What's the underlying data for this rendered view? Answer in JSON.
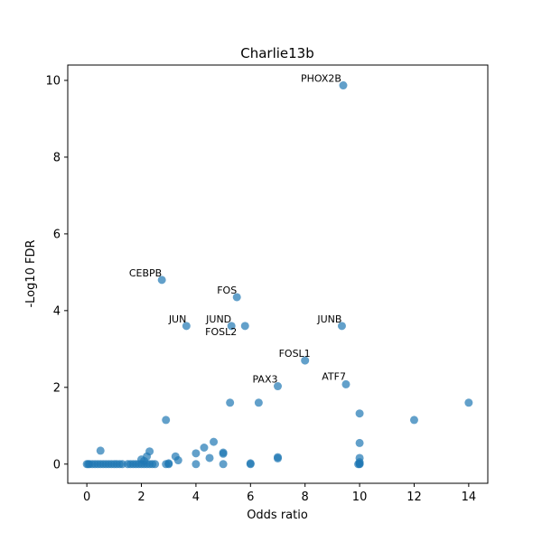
{
  "chart_data": {
    "type": "scatter",
    "title": "Charlie13b",
    "xlabel": "Odds ratio",
    "ylabel": "-Log10 FDR",
    "xlim": [
      -0.7,
      14.7
    ],
    "ylim": [
      -0.5,
      10.4
    ],
    "xticks": [
      0,
      2,
      4,
      6,
      8,
      10,
      12,
      14
    ],
    "yticks": [
      0,
      2,
      4,
      6,
      8,
      10
    ],
    "xtick_labels": [
      "0",
      "2",
      "4",
      "6",
      "8",
      "10",
      "12",
      "14"
    ],
    "ytick_labels": [
      "0",
      "2",
      "4",
      "6",
      "8",
      "10"
    ],
    "grid": false,
    "marker_color": "#1f77b4",
    "marker_alpha": 0.7,
    "labeled_points": [
      {
        "label": "PHOX2B",
        "x": 9.4,
        "y": 9.87
      },
      {
        "label": "CEBPB",
        "x": 2.75,
        "y": 4.8
      },
      {
        "label": "FOS",
        "x": 5.5,
        "y": 4.35
      },
      {
        "label": "JUN",
        "x": 3.65,
        "y": 3.6
      },
      {
        "label": "JUND",
        "x": 5.3,
        "y": 3.6
      },
      {
        "label": "FOSL2",
        "x": 5.8,
        "y": 3.6
      },
      {
        "label": "JUNB",
        "x": 9.35,
        "y": 3.6
      },
      {
        "label": "FOSL1",
        "x": 8.0,
        "y": 2.7
      },
      {
        "label": "ATF7",
        "x": 9.5,
        "y": 2.08
      },
      {
        "label": "PAX3",
        "x": 7.0,
        "y": 2.03
      }
    ],
    "unlabeled_points": [
      {
        "x": 5.25,
        "y": 1.6
      },
      {
        "x": 6.3,
        "y": 1.6
      },
      {
        "x": 14.0,
        "y": 1.6
      },
      {
        "x": 10.0,
        "y": 1.32
      },
      {
        "x": 2.9,
        "y": 1.15
      },
      {
        "x": 12.0,
        "y": 1.15
      },
      {
        "x": 4.65,
        "y": 0.58
      },
      {
        "x": 10.0,
        "y": 0.55
      },
      {
        "x": 4.3,
        "y": 0.43
      },
      {
        "x": 0.5,
        "y": 0.35
      },
      {
        "x": 2.3,
        "y": 0.33
      },
      {
        "x": 4.0,
        "y": 0.28
      },
      {
        "x": 5.0,
        "y": 0.3
      },
      {
        "x": 5.0,
        "y": 0.27
      },
      {
        "x": 3.25,
        "y": 0.2
      },
      {
        "x": 2.2,
        "y": 0.2
      },
      {
        "x": 7.0,
        "y": 0.18
      },
      {
        "x": 7.0,
        "y": 0.15
      },
      {
        "x": 4.5,
        "y": 0.16
      },
      {
        "x": 10.0,
        "y": 0.16
      },
      {
        "x": 2.0,
        "y": 0.12
      },
      {
        "x": 3.35,
        "y": 0.1
      },
      {
        "x": 2.1,
        "y": 0.08
      },
      {
        "x": 10.0,
        "y": 0.05
      },
      {
        "x": 0.0,
        "y": 0.0
      },
      {
        "x": 0.05,
        "y": 0.0
      },
      {
        "x": 0.1,
        "y": 0.0
      },
      {
        "x": 0.2,
        "y": 0.0
      },
      {
        "x": 0.3,
        "y": 0.0
      },
      {
        "x": 0.4,
        "y": 0.0
      },
      {
        "x": 0.5,
        "y": 0.0
      },
      {
        "x": 0.6,
        "y": 0.0
      },
      {
        "x": 0.7,
        "y": 0.0
      },
      {
        "x": 0.8,
        "y": 0.0
      },
      {
        "x": 0.9,
        "y": 0.0
      },
      {
        "x": 1.0,
        "y": 0.0
      },
      {
        "x": 1.1,
        "y": 0.0
      },
      {
        "x": 1.2,
        "y": 0.0
      },
      {
        "x": 1.3,
        "y": 0.0
      },
      {
        "x": 1.5,
        "y": 0.0
      },
      {
        "x": 1.6,
        "y": 0.0
      },
      {
        "x": 1.7,
        "y": 0.0
      },
      {
        "x": 1.8,
        "y": 0.0
      },
      {
        "x": 1.9,
        "y": 0.0
      },
      {
        "x": 2.0,
        "y": 0.0
      },
      {
        "x": 2.1,
        "y": 0.0
      },
      {
        "x": 2.2,
        "y": 0.0
      },
      {
        "x": 2.3,
        "y": 0.0
      },
      {
        "x": 2.4,
        "y": 0.0
      },
      {
        "x": 2.5,
        "y": 0.0
      },
      {
        "x": 2.9,
        "y": 0.0
      },
      {
        "x": 3.0,
        "y": 0.0
      },
      {
        "x": 3.0,
        "y": 0.02
      },
      {
        "x": 4.0,
        "y": 0.0
      },
      {
        "x": 5.0,
        "y": 0.0
      },
      {
        "x": 6.0,
        "y": 0.0
      },
      {
        "x": 6.0,
        "y": 0.02
      },
      {
        "x": 10.0,
        "y": 0.0
      },
      {
        "x": 10.0,
        "y": 0.01
      },
      {
        "x": 9.95,
        "y": 0.0
      }
    ]
  }
}
